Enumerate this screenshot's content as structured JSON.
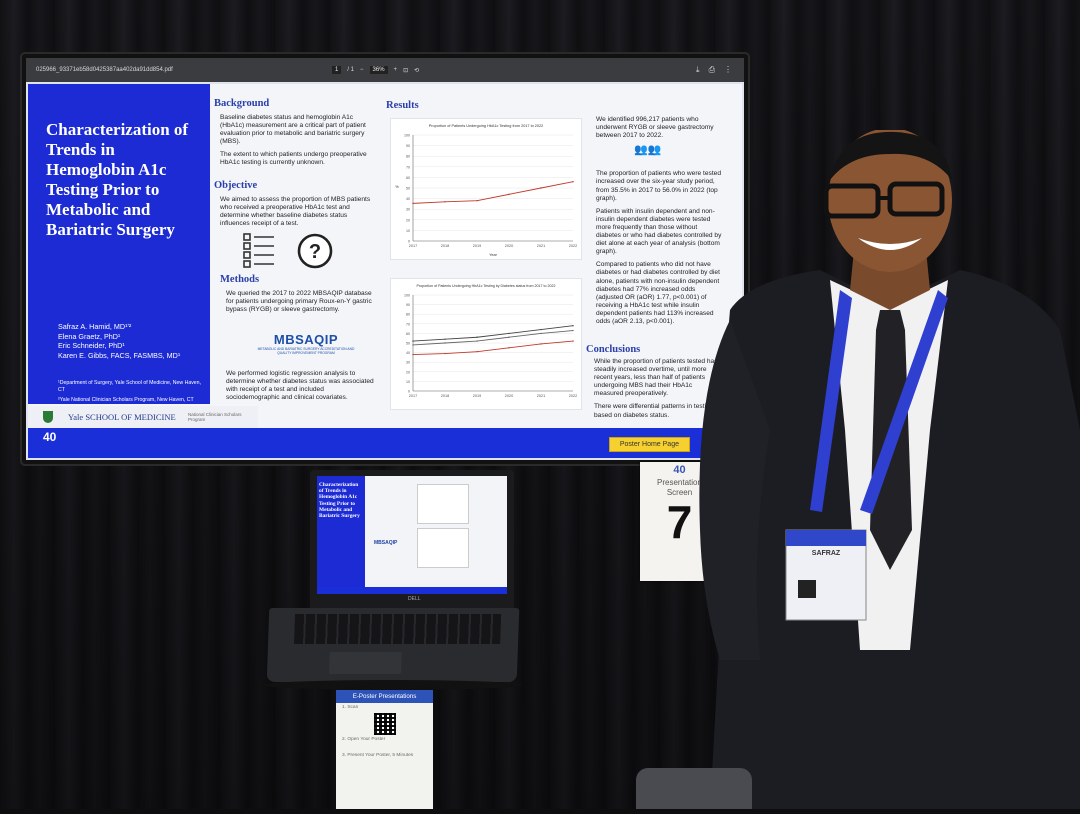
{
  "viewer": {
    "filename": "025966_93371eb58d0425387aa402da91dd854.pdf",
    "page": "1",
    "page_total": "/ 1",
    "zoom": "36%"
  },
  "poster": {
    "title": "Characterization of Trends in Hemoglobin A1c Testing Prior to Metabolic and Bariatric Surgery",
    "authors": [
      "Safraz A. Hamid, MD¹ʹ²",
      "Elena Graetz, PhD¹",
      "Eric Schneider, PhD¹",
      "Karen E. Gibbs, FACS, FASMBS, MD¹"
    ],
    "affiliations": [
      "¹Department of Surgery, Yale School of Medicine, New Haven, CT",
      "²Yale National Clinician Scholars Program, New Haven, CT"
    ],
    "background_heading": "Background",
    "background": [
      "Baseline diabetes status and hemoglobin A1c (HbA1c) measurement are a critical part of patient evaluation prior to metabolic and bariatric surgery (MBS).",
      "The extent to which patients undergo preoperative HbA1c testing is currently unknown."
    ],
    "objective_heading": "Objective",
    "objective": [
      "We aimed to assess the proportion of MBS patients who received a preoperative HbA1c test and determine whether baseline diabetes status influences receipt of a test."
    ],
    "methods_heading": "Methods",
    "methods": [
      "We queried the 2017 to 2022 MBSAQIP database for patients undergoing primary Roux-en-Y gastric bypass (RYGB) or sleeve gastrectomy.",
      "We performed logistic regression analysis to determine whether diabetes status was associated with receipt of a test and included sociodemographic and clinical covariates."
    ],
    "mbsaqip_logo": "MBSAQIP",
    "mbsaqip_sub": "METABOLIC AND BARIATRIC SURGERY ACCREDITATION AND QUALITY IMPROVEMENT PROGRAM",
    "results_heading": "Results",
    "results": [
      "We identified 996,217 patients who underwent RYGB or sleeve gastrectomy between 2017 to 2022.",
      "The proportion of patients who were tested increased over the six-year study period, from 35.5% in 2017 to 56.0% in 2022 (top graph).",
      "Patients with insulin dependent and non-insulin dependent diabetes were tested more frequently than those without diabetes or who had diabetes controlled by diet alone at each year of analysis (bottom graph).",
      "Compared to patients who did not have diabetes or had diabetes controlled by diet alone, patients with non-insulin dependent diabetes had 77% increased odds (adjusted OR (aOR) 1.77, p<0.001) of receiving a HbA1c test while insulin dependent patients had 113% increased odds (aOR 2.13, p<0.001)."
    ],
    "conclusions_heading": "Conclusions",
    "conclusions": [
      "While the proportion of patients tested has steadily increased overtime, until more recent years, less than half of patients undergoing MBS had their HbA1c measured preoperatively.",
      "There were differential patterns in testing based on diabetes status."
    ],
    "graph1_title": "Proportion of Patients Undergoing HbA1c Testing from 2017 to 2022",
    "graph2_title": "Proportion of Patients Undergoing HbA1c Testing by Diabetes status from 2017 to 2022",
    "graph1_ylabel": "%",
    "graph1_xlabel": "Year",
    "yale_footer": "Yale SCHOOL OF MEDICINE",
    "ncsp_footer": "National Clinician Scholars Program",
    "home_button": "Poster Home Page",
    "logo40": "40"
  },
  "chart_data": [
    {
      "type": "line",
      "title": "Proportion of Patients Undergoing HbA1c Testing from 2017 to 2022",
      "xlabel": "Year",
      "ylabel": "%",
      "x": [
        2017,
        2018,
        2019,
        2020,
        2021,
        2022
      ],
      "series": [
        {
          "values": [
            35.5,
            37,
            38,
            44,
            50,
            56.0
          ]
        }
      ],
      "ylim": [
        0,
        100
      ]
    },
    {
      "type": "line",
      "title": "Proportion of Patients Undergoing HbA1c Testing by Diabetes status from 2017 to 2022",
      "x": [
        2017,
        2018,
        2019,
        2020,
        2021,
        2022
      ],
      "series": [
        {
          "values": [
            52,
            54,
            56,
            60,
            64,
            68
          ]
        },
        {
          "values": [
            48,
            50,
            52,
            56,
            60,
            63
          ]
        },
        {
          "values": [
            38,
            39,
            41,
            45,
            49,
            52
          ]
        }
      ],
      "ylim": [
        0,
        100
      ]
    }
  ],
  "laptop": {
    "title": "Characterization of Trends in Hemoglobin A1c Testing Prior to Metabolic and Bariatric Surgery",
    "mbsaqip": "MBSAQIP",
    "brand": "DELL"
  },
  "sign": {
    "logo": "40",
    "label1": "Presentation",
    "label2": "Screen",
    "number": "7"
  },
  "qr_sign": {
    "heading": "E-Poster Presentations",
    "line1": "1. Scan",
    "line2": "2. Open Your Poster",
    "line3": "3. Present Your Poster, 5 Minutes"
  },
  "badge": {
    "name": "SAFRAZ"
  },
  "colors": {
    "poster_blue": "#1c2bd4",
    "heading_blue": "#2a3faa",
    "button_yellow": "#f5d030"
  }
}
